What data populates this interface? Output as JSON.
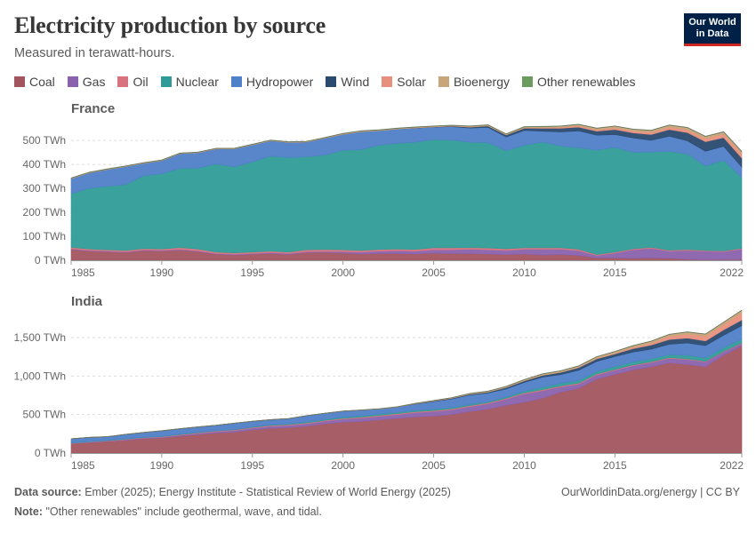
{
  "header": {
    "title": "Electricity production by source",
    "subtitle": "Measured in terawatt-hours.",
    "logo_line1": "Our World",
    "logo_line2": "in Data"
  },
  "footer": {
    "source_label": "Data source:",
    "source_text": "Ember (2025); Energy Institute - Statistical Review of World Energy (2025)",
    "note_label": "Note:",
    "note_text": "\"Other renewables\" include geothermal, wave, and tidal.",
    "link": "OurWorldinData.org/energy | CC BY"
  },
  "chart_data": [
    {
      "type": "area",
      "title": "France",
      "unit": "TWh",
      "x": [
        1985,
        1986,
        1987,
        1988,
        1989,
        1990,
        1991,
        1992,
        1993,
        1994,
        1995,
        1996,
        1997,
        1998,
        1999,
        2000,
        2001,
        2002,
        2003,
        2004,
        2005,
        2006,
        2007,
        2008,
        2009,
        2010,
        2011,
        2012,
        2013,
        2014,
        2015,
        2016,
        2017,
        2018,
        2019,
        2020,
        2021,
        2022
      ],
      "ylim": [
        0,
        560
      ],
      "yticks": [
        0,
        100,
        200,
        300,
        400,
        500
      ],
      "xticks": [
        1985,
        1990,
        1995,
        2000,
        2005,
        2010,
        2015,
        2022
      ],
      "series": [
        {
          "name": "Coal",
          "color": "#a2555e",
          "values": [
            45,
            38,
            35,
            32,
            40,
            38,
            42,
            36,
            25,
            22,
            25,
            28,
            24,
            32,
            32,
            30,
            26,
            28,
            28,
            26,
            30,
            28,
            28,
            26,
            24,
            26,
            22,
            24,
            20,
            10,
            10,
            8,
            10,
            8,
            4,
            2,
            3,
            3
          ]
        },
        {
          "name": "Gas",
          "color": "#8a62ad",
          "values": [
            3,
            3,
            3,
            3,
            3,
            3,
            3,
            3,
            3,
            3,
            3,
            4,
            4,
            4,
            5,
            6,
            8,
            10,
            12,
            12,
            14,
            16,
            18,
            18,
            17,
            20,
            24,
            22,
            20,
            10,
            20,
            36,
            40,
            30,
            37,
            36,
            33,
            44
          ]
        },
        {
          "name": "Oil",
          "color": "#d8727e",
          "values": [
            6,
            6,
            6,
            6,
            6,
            6,
            8,
            8,
            6,
            6,
            6,
            6,
            6,
            8,
            8,
            8,
            7,
            7,
            7,
            7,
            8,
            8,
            7,
            7,
            7,
            6,
            6,
            6,
            6,
            4,
            4,
            4,
            4,
            4,
            4,
            3,
            3,
            3
          ]
        },
        {
          "name": "Nuclear",
          "color": "#2f9c97",
          "values": [
            224,
            254,
            265,
            275,
            304,
            314,
            331,
            338,
            368,
            359,
            377,
            397,
            395,
            388,
            394,
            415,
            421,
            436,
            441,
            448,
            452,
            450,
            440,
            440,
            410,
            428,
            442,
            425,
            424,
            436,
            437,
            403,
            398,
            413,
            399,
            353,
            379,
            295
          ]
        },
        {
          "name": "Hydropower",
          "color": "#5080c8",
          "values": [
            63,
            64,
            70,
            75,
            52,
            55,
            61,
            64,
            63,
            75,
            71,
            64,
            63,
            62,
            71,
            67,
            75,
            60,
            60,
            59,
            52,
            56,
            59,
            64,
            57,
            62,
            45,
            59,
            70,
            62,
            54,
            60,
            49,
            63,
            55,
            61,
            58,
            44
          ]
        },
        {
          "name": "Wind",
          "color": "#2a4a70",
          "values": [
            0,
            0,
            0,
            0,
            0,
            0,
            0,
            0,
            0,
            0,
            0,
            0,
            0,
            0,
            0,
            0,
            0,
            0,
            0,
            1,
            1,
            2,
            4,
            6,
            8,
            10,
            12,
            15,
            16,
            17,
            21,
            21,
            24,
            28,
            34,
            40,
            36,
            38
          ]
        },
        {
          "name": "Solar",
          "color": "#e8907e",
          "values": [
            0,
            0,
            0,
            0,
            0,
            0,
            0,
            0,
            0,
            0,
            0,
            0,
            0,
            0,
            0,
            0,
            0,
            0,
            0,
            0,
            0,
            0,
            0,
            0,
            0,
            1,
            2,
            4,
            5,
            6,
            7,
            8,
            9,
            10,
            12,
            13,
            15,
            18
          ]
        },
        {
          "name": "Bioenergy",
          "color": "#c9a57a",
          "values": [
            2,
            2,
            2,
            2,
            2,
            2,
            2,
            2,
            2,
            2,
            2,
            2,
            2,
            2,
            2,
            3,
            3,
            3,
            3,
            3,
            3,
            3,
            4,
            4,
            4,
            4,
            5,
            5,
            6,
            6,
            7,
            7,
            8,
            8,
            9,
            9,
            9,
            9
          ]
        },
        {
          "name": "Other renewables",
          "color": "#6b9c5e",
          "values": [
            0.5,
            0.5,
            0.5,
            0.5,
            0.5,
            0.5,
            0.5,
            0.5,
            0.5,
            0.5,
            0.5,
            0.5,
            0.5,
            0.5,
            0.5,
            0.5,
            0.5,
            0.5,
            0.5,
            0.5,
            0.5,
            0.5,
            0.5,
            0.5,
            0.5,
            0.5,
            0.5,
            0.5,
            0.5,
            0.5,
            0.5,
            0.5,
            0.5,
            0.5,
            0.5,
            0.5,
            0.5,
            0.5
          ]
        }
      ]
    },
    {
      "type": "area",
      "title": "India",
      "unit": "TWh",
      "x": [
        1985,
        1986,
        1987,
        1988,
        1989,
        1990,
        1991,
        1992,
        1993,
        1994,
        1995,
        1996,
        1997,
        1998,
        1999,
        2000,
        2001,
        2002,
        2003,
        2004,
        2005,
        2006,
        2007,
        2008,
        2009,
        2010,
        2011,
        2012,
        2013,
        2014,
        2015,
        2016,
        2017,
        2018,
        2019,
        2020,
        2021,
        2022
      ],
      "ylim": [
        0,
        1800
      ],
      "yticks": [
        0,
        500,
        1000,
        1500
      ],
      "xticks": [
        1985,
        1990,
        1995,
        2000,
        2005,
        2010,
        2015,
        2022
      ],
      "series": [
        {
          "name": "Coal",
          "color": "#a2555e",
          "values": [
            120,
            135,
            150,
            165,
            185,
            195,
            220,
            240,
            260,
            270,
            300,
            320,
            330,
            350,
            380,
            400,
            410,
            430,
            450,
            470,
            480,
            500,
            540,
            570,
            620,
            660,
            710,
            790,
            840,
            960,
            1020,
            1080,
            1120,
            1170,
            1150,
            1120,
            1270,
            1390
          ]
        },
        {
          "name": "Gas",
          "color": "#8a62ad",
          "values": [
            4,
            5,
            6,
            8,
            10,
            10,
            12,
            15,
            18,
            22,
            25,
            28,
            30,
            32,
            35,
            40,
            45,
            48,
            50,
            55,
            60,
            62,
            65,
            70,
            80,
            110,
            100,
            70,
            55,
            55,
            55,
            55,
            55,
            60,
            65,
            65,
            45,
            35
          ]
        },
        {
          "name": "Oil",
          "color": "#d8727e",
          "values": [
            4,
            5,
            5,
            6,
            6,
            7,
            7,
            8,
            8,
            9,
            9,
            10,
            10,
            10,
            10,
            11,
            11,
            12,
            12,
            12,
            12,
            12,
            12,
            12,
            12,
            12,
            12,
            12,
            12,
            12,
            10,
            10,
            10,
            10,
            8,
            7,
            7,
            7
          ]
        },
        {
          "name": "Nuclear",
          "color": "#2f9c97",
          "values": [
            5,
            5,
            5,
            6,
            5,
            6,
            5,
            7,
            5,
            5,
            7,
            8,
            10,
            12,
            12,
            16,
            18,
            19,
            17,
            17,
            17,
            17,
            17,
            14,
            16,
            22,
            32,
            33,
            34,
            34,
            37,
            38,
            38,
            38,
            46,
            43,
            47,
            47
          ]
        },
        {
          "name": "Hydropower",
          "color": "#5080c8",
          "values": [
            52,
            54,
            47,
            58,
            62,
            72,
            72,
            70,
            70,
            82,
            72,
            68,
            68,
            82,
            80,
            77,
            73,
            63,
            68,
            82,
            100,
            112,
            120,
            113,
            105,
            114,
            131,
            114,
            134,
            129,
            132,
            128,
            126,
            135,
            161,
            160,
            162,
            176
          ]
        },
        {
          "name": "Wind",
          "color": "#2a4a70",
          "values": [
            0,
            0,
            0,
            0,
            0,
            0,
            0,
            0,
            0,
            0,
            0,
            0,
            0,
            0,
            0,
            0,
            0,
            0,
            0,
            5,
            6,
            8,
            10,
            13,
            18,
            20,
            24,
            28,
            34,
            34,
            33,
            45,
            53,
            62,
            63,
            61,
            68,
            73
          ]
        },
        {
          "name": "Solar",
          "color": "#e8907e",
          "values": [
            0,
            0,
            0,
            0,
            0,
            0,
            0,
            0,
            0,
            0,
            0,
            0,
            0,
            0,
            0,
            0,
            0,
            0,
            0,
            0,
            0,
            0,
            0,
            0,
            0,
            0,
            1,
            2,
            3,
            5,
            8,
            14,
            25,
            40,
            52,
            60,
            70,
            95
          ]
        },
        {
          "name": "Bioenergy",
          "color": "#c9a57a",
          "values": [
            0,
            0,
            0,
            0,
            0,
            0,
            0,
            0,
            0,
            0,
            0,
            0,
            0,
            0,
            0,
            1,
            2,
            3,
            4,
            5,
            7,
            8,
            10,
            12,
            14,
            16,
            18,
            19,
            20,
            22,
            24,
            25,
            26,
            27,
            28,
            29,
            30,
            32
          ]
        },
        {
          "name": "Other renewables",
          "color": "#6b9c5e",
          "values": [
            0,
            0,
            0,
            0,
            0,
            0,
            0,
            0,
            0,
            0,
            0,
            0,
            0,
            0,
            0,
            0,
            0,
            0,
            0,
            0,
            0,
            0,
            0,
            0,
            0,
            0,
            0,
            0,
            0,
            0,
            0,
            0,
            0,
            0,
            0,
            0,
            0,
            0
          ]
        }
      ]
    }
  ]
}
